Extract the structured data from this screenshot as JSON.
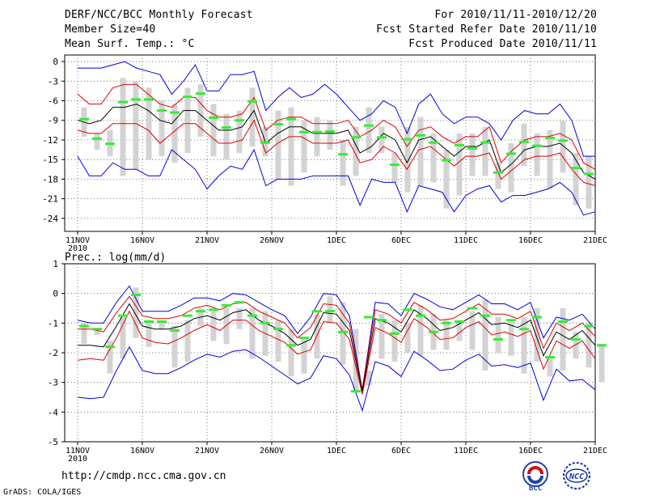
{
  "header": {
    "title": "DERF/NCC/BCC Monthly Forecast",
    "member_size": "Member Size=40",
    "variable": "Mean Surf. Temp.: °C",
    "period": "For 2010/11/11-2010/12/20",
    "started": "Fcst Started Refer Date 2010/11/10",
    "produced": "Fcst Produced Date 2010/11/11"
  },
  "footer": {
    "url": "http://cmdp.ncc.cma.gov.cn",
    "grads": "GrADS: COLA/IGES",
    "logo_bcc": "BCC",
    "logo_ncc": "NCC"
  },
  "colors": {
    "spread": "#d3d3d3",
    "member": "#33ee33",
    "mean": "#000000",
    "inner": "#dd0000",
    "outer": "#0000dd",
    "grid": "#555555"
  },
  "chart_data": [
    {
      "type": "line",
      "id": "temp",
      "title": "Mean Surf. Temp.: °C",
      "xlabel": "",
      "ylabel": "°C",
      "ylim": [
        -26,
        1
      ],
      "yticks": [
        0,
        -3,
        -6,
        -9,
        -12,
        -15,
        -18,
        -21,
        -24
      ],
      "x_tick_days": [
        1,
        6,
        11,
        16,
        21,
        26,
        31,
        36,
        41
      ],
      "x_tick_labels": [
        "11NOV",
        "16NOV",
        "21NOV",
        "26NOV",
        "1DEC",
        "6DEC",
        "11DEC",
        "16DEC",
        "21DEC"
      ],
      "x_year_label": "2010",
      "days": 40,
      "series": [
        {
          "name": "ensemble mean",
          "values": [
            -9.0,
            -9.5,
            -9.0,
            -7.0,
            -7.0,
            -6.5,
            -7.5,
            -9.0,
            -9.5,
            -7.5,
            -7.5,
            -9.0,
            -10.5,
            -10.5,
            -10.0,
            -7.5,
            -12.5,
            -11.0,
            -10.0,
            -10.0,
            -11.0,
            -11.0,
            -11.0,
            -10.5,
            -14.0,
            -13.0,
            -11.0,
            -12.0,
            -15.5,
            -12.0,
            -11.5,
            -13.0,
            -14.5,
            -13.0,
            -13.0,
            -12.0,
            -17.0,
            -15.5,
            -13.5,
            -13.0,
            -13.0,
            -12.5,
            -14.0,
            -17.0,
            -18.0
          ]
        },
        {
          "name": "upper inner bound",
          "values": [
            -5.0,
            -6.5,
            -6.5,
            -4.0,
            -3.5,
            -3.5,
            -5.0,
            -6.5,
            -7.0,
            -5.5,
            -5.5,
            -7.5,
            -8.5,
            -8.5,
            -8.0,
            -5.5,
            -10.5,
            -9.0,
            -8.5,
            -8.5,
            -9.5,
            -9.5,
            -9.5,
            -9.0,
            -11.5,
            -10.5,
            -9.0,
            -10.0,
            -13.0,
            -10.5,
            -10.0,
            -11.5,
            -12.5,
            -11.5,
            -11.5,
            -10.0,
            -15.5,
            -13.5,
            -12.0,
            -11.5,
            -11.5,
            -11.0,
            -12.0,
            -15.5,
            -16.5
          ]
        },
        {
          "name": "lower inner bound",
          "values": [
            -10.5,
            -11.0,
            -11.0,
            -9.5,
            -9.5,
            -9.5,
            -10.5,
            -12.5,
            -11.0,
            -9.5,
            -9.5,
            -11.0,
            -12.5,
            -12.5,
            -12.0,
            -9.0,
            -14.0,
            -12.5,
            -11.5,
            -11.5,
            -12.5,
            -12.5,
            -12.5,
            -12.0,
            -15.5,
            -15.0,
            -13.0,
            -14.0,
            -16.5,
            -13.5,
            -13.0,
            -14.5,
            -16.0,
            -14.5,
            -14.5,
            -14.0,
            -18.0,
            -16.5,
            -15.0,
            -14.5,
            -14.5,
            -14.0,
            -16.5,
            -18.5,
            -19.0
          ]
        },
        {
          "name": "maximum",
          "values": [
            -1.0,
            -1.0,
            -1.0,
            -0.5,
            0.0,
            -1.0,
            -1.5,
            -2.0,
            -5.0,
            -3.0,
            -0.5,
            -4.5,
            -4.5,
            -2.0,
            -2.0,
            -1.5,
            -7.5,
            -5.5,
            -4.0,
            -5.5,
            -5.0,
            -3.5,
            -5.0,
            -7.0,
            -9.0,
            -8.0,
            -6.0,
            -7.0,
            -11.0,
            -6.5,
            -5.0,
            -8.0,
            -9.5,
            -8.5,
            -8.5,
            -9.5,
            -12.0,
            -9.0,
            -7.5,
            -8.0,
            -8.0,
            -6.5,
            -9.0,
            -14.5,
            -14.5
          ]
        },
        {
          "name": "minimum",
          "values": [
            -14.5,
            -17.5,
            -17.5,
            -15.5,
            -16.5,
            -16.5,
            -17.5,
            -17.5,
            -13.5,
            -15.0,
            -16.5,
            -19.5,
            -17.5,
            -16.0,
            -16.5,
            -13.5,
            -19.0,
            -18.0,
            -18.0,
            -18.0,
            -17.5,
            -17.5,
            -17.5,
            -17.5,
            -22.0,
            -18.0,
            -18.5,
            -18.5,
            -23.0,
            -19.0,
            -19.5,
            -20.0,
            -23.0,
            -20.5,
            -19.5,
            -19.0,
            -21.5,
            -20.5,
            -20.5,
            -20.0,
            -19.5,
            -18.5,
            -20.0,
            -23.5,
            -23.0
          ]
        },
        {
          "name": "member",
          "values": [
            -8.8,
            -11.8,
            -12.6,
            -6.2,
            -5.8,
            -5.8,
            -7.5,
            -7.8,
            -5.4,
            -4.9,
            -8.6,
            -10.1,
            -9.0,
            -6.1,
            -12.4,
            -9.6,
            -8.8,
            -10.8,
            -10.8,
            -10.7,
            -14.2,
            -11.6,
            -9.8,
            -11.6,
            -15.8,
            -11.9,
            -11.3,
            -12.4,
            -15.1,
            -12.8,
            -13.3,
            -12.4,
            -17.0,
            -14.1,
            -12.3,
            -12.9,
            -11.7,
            -12.1,
            -16.3,
            -17.2
          ]
        }
      ],
      "spread_bars": {
        "top": [
          -7.0,
          -11.0,
          -10.5,
          -2.5,
          -3.0,
          -4.0,
          -6.0,
          -6.5,
          -4.0,
          -3.5,
          -6.5,
          -8.0,
          -7.5,
          -4.0,
          -10.0,
          -7.5,
          -7.0,
          -9.0,
          -8.5,
          -9.0,
          -12.0,
          -10.0,
          -7.0,
          -10.0,
          -14.0,
          -10.0,
          -8.5,
          -11.0,
          -13.5,
          -11.0,
          -11.0,
          -10.0,
          -15.5,
          -12.5,
          -9.5,
          -11.0,
          -10.5,
          -9.0,
          -14.0,
          -14.5
        ],
        "bottom": [
          -11.5,
          -13.5,
          -14.5,
          -17.5,
          -16.5,
          -15.0,
          -14.5,
          -15.5,
          -14.0,
          -11.5,
          -14.5,
          -15.0,
          -14.0,
          -13.0,
          -14.5,
          -18.0,
          -19.0,
          -17.0,
          -14.5,
          -13.5,
          -19.0,
          -17.5,
          -14.0,
          -14.0,
          -18.5,
          -20.0,
          -19.0,
          -18.5,
          -22.5,
          -20.5,
          -17.5,
          -17.5,
          -19.5,
          -20.0,
          -16.0,
          -17.5,
          -19.5,
          -17.0,
          -22.0,
          -22.5
        ]
      }
    },
    {
      "type": "line",
      "id": "prec",
      "title": "Prec.: log(mm/d)",
      "xlabel": "",
      "ylabel": "log(mm/d)",
      "ylim": [
        -5,
        1
      ],
      "yticks": [
        1,
        0,
        -1,
        -2,
        -3,
        -4,
        -5
      ],
      "x_tick_days": [
        1,
        6,
        11,
        16,
        21,
        26,
        31,
        36,
        41
      ],
      "x_tick_labels": [
        "11NOV",
        "16NOV",
        "21NOV",
        "26NOV",
        "1DEC",
        "6DEC",
        "11DEC",
        "16DEC",
        "21DEC"
      ],
      "x_year_label": "2010",
      "days": 40,
      "series": [
        {
          "name": "ensemble mean",
          "values": [
            -1.75,
            -1.75,
            -1.8,
            -1.1,
            -0.35,
            -1.1,
            -1.2,
            -1.2,
            -1.1,
            -0.85,
            -0.75,
            -0.9,
            -0.65,
            -0.55,
            -0.9,
            -1.1,
            -1.35,
            -1.75,
            -1.55,
            -0.65,
            -0.7,
            -1.25,
            -3.3,
            -0.85,
            -1.0,
            -1.3,
            -0.55,
            -0.85,
            -1.25,
            -1.15,
            -0.9,
            -0.65,
            -1.05,
            -1.0,
            -1.15,
            -0.9,
            -2.1,
            -1.3,
            -1.55,
            -1.25,
            -1.75
          ]
        },
        {
          "name": "upper inner bound",
          "values": [
            -1.2,
            -1.2,
            -1.3,
            -0.65,
            -0.1,
            -0.75,
            -0.85,
            -0.85,
            -0.75,
            -0.5,
            -0.4,
            -0.55,
            -0.35,
            -0.3,
            -0.6,
            -0.8,
            -1.0,
            -1.5,
            -1.15,
            -0.35,
            -0.4,
            -1.0,
            -3.25,
            -0.55,
            -0.7,
            -1.0,
            -0.3,
            -0.55,
            -0.9,
            -0.85,
            -0.6,
            -0.35,
            -0.7,
            -0.7,
            -0.85,
            -0.6,
            -1.85,
            -1.0,
            -1.25,
            -1.0,
            -1.45
          ]
        },
        {
          "name": "lower inner bound",
          "values": [
            -2.25,
            -2.2,
            -2.25,
            -1.5,
            -0.6,
            -1.5,
            -1.65,
            -1.7,
            -1.5,
            -1.25,
            -1.05,
            -1.25,
            -0.9,
            -0.9,
            -1.25,
            -1.45,
            -1.65,
            -2.05,
            -1.9,
            -0.95,
            -1.0,
            -1.55,
            -3.4,
            -1.15,
            -1.35,
            -1.65,
            -0.85,
            -1.15,
            -1.55,
            -1.5,
            -1.15,
            -0.95,
            -1.4,
            -1.3,
            -1.45,
            -1.25,
            -2.55,
            -1.6,
            -1.85,
            -1.6,
            -2.2
          ]
        },
        {
          "name": "maximum",
          "values": [
            -0.9,
            -1.0,
            -1.0,
            -0.3,
            0.25,
            -0.6,
            -0.6,
            -0.6,
            -0.4,
            -0.15,
            -0.15,
            -0.25,
            0.0,
            -0.05,
            -0.3,
            -0.55,
            -0.75,
            -1.35,
            -0.8,
            0.0,
            -0.05,
            -0.75,
            -3.25,
            -0.3,
            -0.35,
            -0.75,
            0.0,
            -0.2,
            -0.45,
            -0.55,
            -0.3,
            -0.05,
            -0.35,
            -0.35,
            -0.55,
            -0.3,
            -1.5,
            -0.8,
            -0.9,
            -0.7,
            -1.2
          ]
        },
        {
          "name": "minimum",
          "values": [
            -3.5,
            -3.55,
            -3.5,
            -2.6,
            -1.8,
            -2.6,
            -2.7,
            -2.7,
            -2.5,
            -2.25,
            -2.05,
            -2.15,
            -1.95,
            -1.9,
            -2.15,
            -2.45,
            -2.75,
            -3.05,
            -2.85,
            -2.1,
            -2.2,
            -2.75,
            -3.95,
            -2.3,
            -2.45,
            -2.8,
            -1.95,
            -2.25,
            -2.6,
            -2.55,
            -2.25,
            -2.05,
            -2.45,
            -2.4,
            -2.5,
            -2.35,
            -3.6,
            -2.55,
            -2.95,
            -2.9,
            -3.25
          ]
        },
        {
          "name": "member",
          "values": [
            -1.1,
            -1.2,
            -1.8,
            -0.75,
            -0.05,
            -0.95,
            -0.95,
            -1.25,
            -0.75,
            -0.6,
            -0.55,
            -0.4,
            -0.3,
            -0.75,
            -1.0,
            -1.2,
            -1.75,
            -1.5,
            -0.6,
            -0.6,
            -1.3,
            -3.3,
            -0.8,
            -0.9,
            -1.35,
            -0.55,
            -0.75,
            -1.3,
            -1.0,
            -0.95,
            -0.5,
            -0.75,
            -1.55,
            -0.9,
            -1.2,
            -0.8,
            -2.15,
            -0.95,
            -1.55,
            -1.1,
            -1.75
          ]
        },
        {
          "name": "spread_top",
          "values": [
            -1.0,
            -1.2,
            -1.6,
            -0.8,
            0.2,
            -0.9,
            -1.0,
            -1.1,
            -0.9,
            -0.5,
            -0.6,
            -0.5,
            -0.5,
            -0.5,
            -0.6,
            -0.9,
            -1.2,
            -1.5,
            -0.7,
            -0.1,
            -0.3,
            -1.2,
            -3.1,
            -0.7,
            -0.9,
            -1.0,
            -0.4,
            -0.7,
            -0.9,
            -0.9,
            -0.6,
            -0.2,
            -0.8,
            -0.9,
            -0.8,
            -0.5,
            -2.1,
            -0.5,
            -1.3,
            -1.0,
            -1.7
          ]
        },
        {
          "name": "spread_bottom",
          "values": [
            -1.7,
            -1.4,
            -2.7,
            -2.2,
            -1.5,
            -1.8,
            -1.2,
            -2.5,
            -2.3,
            -1.1,
            -1.6,
            -1.7,
            -1.2,
            -2.2,
            -2.1,
            -2.3,
            -2.8,
            -2.7,
            -2.2,
            -1.0,
            -2.4,
            -3.3,
            -2.6,
            -2.2,
            -2.3,
            -2.0,
            -2.1,
            -1.9,
            -1.9,
            -1.6,
            -1.9,
            -2.6,
            -2.0,
            -2.1,
            -2.7,
            -2.3,
            -2.8,
            -2.6,
            -2.2,
            -2.5,
            -3.0
          ]
        }
      ]
    }
  ]
}
